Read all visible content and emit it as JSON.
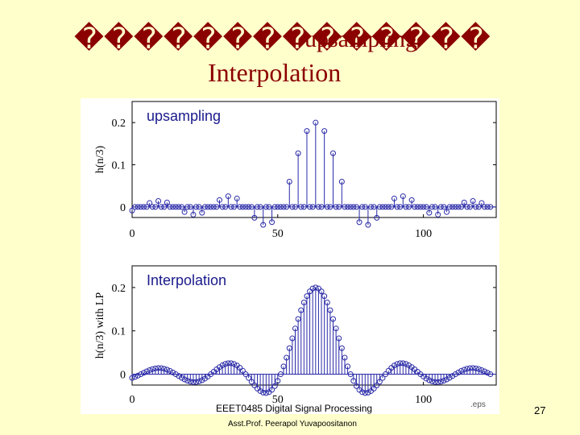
{
  "slide": {
    "title_placeholder_glyphs": "��������������",
    "title_overlay": "upsampling",
    "title_line2": "Interpolation",
    "footer_course": "EEET0485 Digital Signal Processing",
    "footer_author": "Asst.Prof. Peerapol Yuvapoositanon",
    "footer_file": ".eps",
    "page_number": "27"
  },
  "chart_data": [
    {
      "type": "stem",
      "label": "upsampling",
      "ylabel": "h(n/3)",
      "xlim": [
        0,
        125
      ],
      "ylim": [
        -0.025,
        0.25
      ],
      "xticks": [
        "0",
        "50",
        "100"
      ],
      "xtick_values": [
        0,
        50,
        100
      ],
      "yticks": [
        "0",
        "0.1",
        "0.2"
      ],
      "ytick_values": [
        0,
        0.1,
        0.2
      ],
      "kind": "upsampled",
      "samples_per_period": 3,
      "center": 63,
      "n_max": 123,
      "amplitude": 0.2,
      "lobe_amplitude": 0.045,
      "lobe_period": 42
    },
    {
      "type": "stem",
      "label": "Interpolation",
      "ylabel": "h(n/3) with LP",
      "xlim": [
        0,
        125
      ],
      "ylim": [
        -0.025,
        0.25
      ],
      "xticks": [
        "0",
        "50",
        "100"
      ],
      "xtick_values": [
        0,
        50,
        100
      ],
      "yticks": [
        "0",
        "0.1",
        "0.2"
      ],
      "ytick_values": [
        0,
        0.1,
        0.2
      ],
      "kind": "interpolated",
      "center": 63,
      "n_max": 123,
      "amplitude": 0.2,
      "lobe_amplitude": 0.045,
      "lobe_period": 42
    }
  ],
  "colors": {
    "background": "#ffffcc",
    "title": "#8b0000",
    "stems": "#2a2aa8",
    "label_text": "#1a1a8c"
  }
}
